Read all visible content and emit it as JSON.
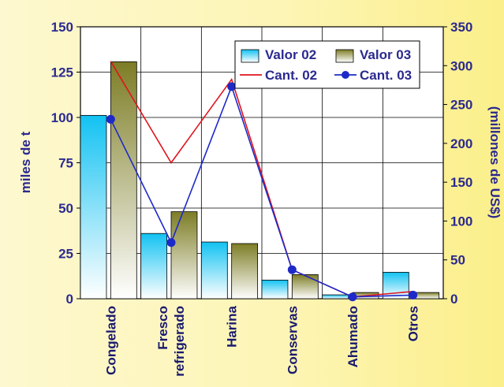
{
  "chart_data": {
    "type": "bar",
    "categories": [
      "Congelado",
      "Fresco refrigerado",
      "Harina",
      "Conservas",
      "Ahumado",
      "Otros"
    ],
    "category_lines": [
      [
        "Congelado"
      ],
      [
        "Fresco",
        "refrigerado"
      ],
      [
        "Harina"
      ],
      [
        "Conservas"
      ],
      [
        "Ahumado"
      ],
      [
        "Otros"
      ]
    ],
    "bar_series": [
      {
        "name": "Valor 02",
        "axis": "right",
        "values": [
          236,
          84,
          73,
          24,
          5,
          34
        ],
        "color": "#1ec8f4"
      },
      {
        "name": "Valor 03",
        "axis": "right",
        "values": [
          305,
          112,
          71,
          31,
          8,
          8
        ],
        "color": "#8a8a2e"
      }
    ],
    "line_series": [
      {
        "name": "Cant. 02",
        "axis": "left",
        "values": [
          131,
          75,
          121,
          16,
          1,
          4
        ],
        "color": "#e0141e",
        "marker": false
      },
      {
        "name": "Cant. 03",
        "axis": "left",
        "values": [
          99,
          31,
          117,
          16,
          1,
          2
        ],
        "color": "#1e2ac8",
        "marker": true
      }
    ],
    "y_left": {
      "label": "miles de t",
      "ylim": [
        0,
        150
      ],
      "ticks": [
        "0",
        "25",
        "50",
        "75",
        "100",
        "125",
        "150"
      ]
    },
    "y_right": {
      "label": "(millones de US$)",
      "ylim": [
        0,
        350
      ],
      "ticks": [
        "0",
        "50",
        "100",
        "150",
        "200",
        "250",
        "300",
        "350"
      ]
    },
    "grid": true,
    "legend": {
      "placement": "top-right",
      "entries": [
        "Valor 02",
        "Valor 03",
        "Cant. 02",
        "Cant. 03"
      ]
    }
  }
}
